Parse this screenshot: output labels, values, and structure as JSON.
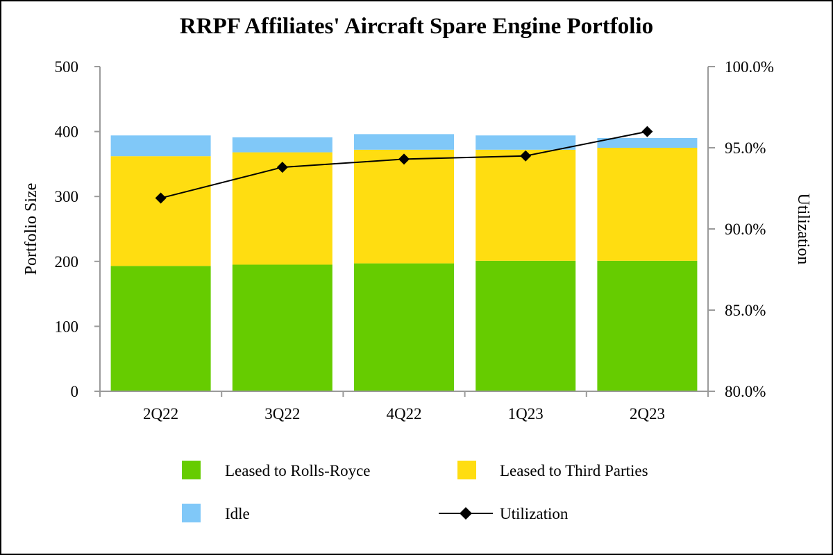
{
  "chart_data": {
    "type": "bar",
    "stacked": true,
    "title": "RRPF Affiliates' Aircraft Spare Engine Portfolio",
    "categories": [
      "2Q22",
      "3Q22",
      "4Q22",
      "1Q23",
      "2Q23"
    ],
    "series": [
      {
        "name": "Leased to Rolls-Royce",
        "type": "bar",
        "axis": "left",
        "color": "#66cc00",
        "values": [
          193,
          195,
          197,
          201,
          201
        ]
      },
      {
        "name": "Leased to Third Parties",
        "type": "bar",
        "axis": "left",
        "color": "#ffdd11",
        "values": [
          169,
          173,
          175,
          171,
          174
        ]
      },
      {
        "name": "Idle",
        "type": "bar",
        "axis": "left",
        "color": "#80c8f8",
        "values": [
          32,
          23,
          24,
          22,
          15
        ]
      },
      {
        "name": "Utilization",
        "type": "line",
        "axis": "right",
        "marker": "diamond",
        "color": "#000000",
        "values": [
          0.919,
          0.938,
          0.943,
          0.945,
          0.96
        ]
      }
    ],
    "ylabel": "Portfolio Size",
    "ylim": [
      0,
      500
    ],
    "yticks": [
      "0",
      "100",
      "200",
      "300",
      "400",
      "500"
    ],
    "y2label": "Utilization",
    "y2lim": [
      0.8,
      1.0
    ],
    "y2ticks": [
      "80.0%",
      "85.0%",
      "90.0%",
      "95.0%",
      "100.0%"
    ],
    "grid": false,
    "legend_position": "bottom"
  }
}
